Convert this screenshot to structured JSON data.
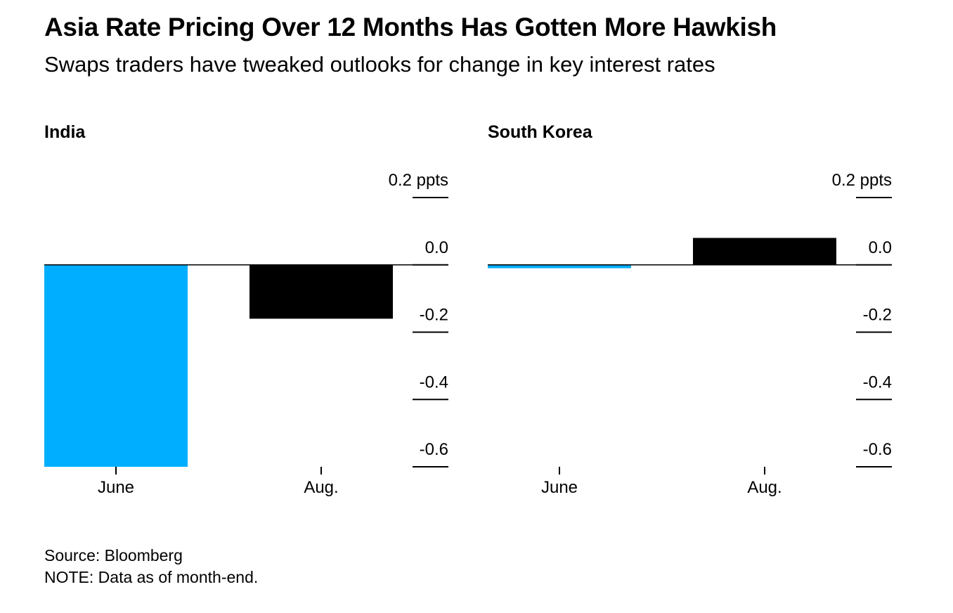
{
  "title": "Asia Rate Pricing Over 12 Months Has Gotten More Hawkish",
  "subtitle": "Swaps traders have tweaked outlooks for change in key interest rates",
  "source": "Source: Bloomberg",
  "note": "NOTE: Data as of month-end.",
  "colors": {
    "june": "#00aeff",
    "aug": "#000000",
    "axis": "#000000"
  },
  "chart_data": [
    {
      "type": "bar",
      "title": "India",
      "categories": [
        "June",
        "Aug."
      ],
      "values": [
        -0.6,
        -0.16
      ],
      "colors": [
        "#00aeff",
        "#000000"
      ],
      "ylim": [
        -0.6,
        0.2
      ],
      "yticks": [
        0.2,
        0.0,
        -0.2,
        -0.4,
        -0.6
      ],
      "ytick_labels": [
        "0.2 ppts",
        "0.0",
        "-0.2",
        "-0.4",
        "-0.6"
      ]
    },
    {
      "type": "bar",
      "title": "South Korea",
      "categories": [
        "June",
        "Aug."
      ],
      "values": [
        -0.01,
        0.08
      ],
      "colors": [
        "#00aeff",
        "#000000"
      ],
      "ylim": [
        -0.6,
        0.2
      ],
      "yticks": [
        0.2,
        0.0,
        -0.2,
        -0.4,
        -0.6
      ],
      "ytick_labels": [
        "0.2 ppts",
        "0.0",
        "-0.2",
        "-0.4",
        "-0.6"
      ]
    }
  ]
}
